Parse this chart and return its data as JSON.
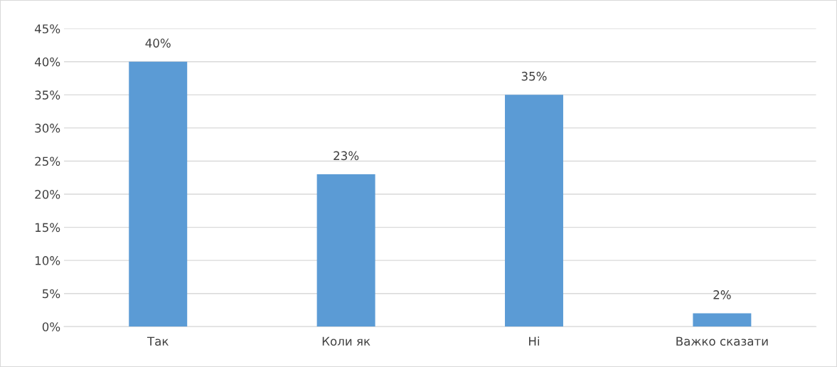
{
  "chart_data": {
    "type": "bar",
    "categories": [
      "Так",
      "Коли як",
      "Ні",
      "Важко сказати"
    ],
    "values": [
      40,
      23,
      35,
      2
    ],
    "value_labels": [
      "40%",
      "23%",
      "35%",
      "2%"
    ],
    "color": "#5b9bd5",
    "ylim": [
      0,
      45
    ],
    "yticks": [
      {
        "value": 0,
        "label": "0%"
      },
      {
        "value": 5,
        "label": "5%"
      },
      {
        "value": 10,
        "label": "10%"
      },
      {
        "value": 15,
        "label": "15%"
      },
      {
        "value": 20,
        "label": "20%"
      },
      {
        "value": 25,
        "label": "25%"
      },
      {
        "value": 30,
        "label": "30%"
      },
      {
        "value": 35,
        "label": "35%"
      },
      {
        "value": 40,
        "label": "40%"
      },
      {
        "value": 45,
        "label": "45%"
      }
    ],
    "grid": "y",
    "legend": false
  }
}
